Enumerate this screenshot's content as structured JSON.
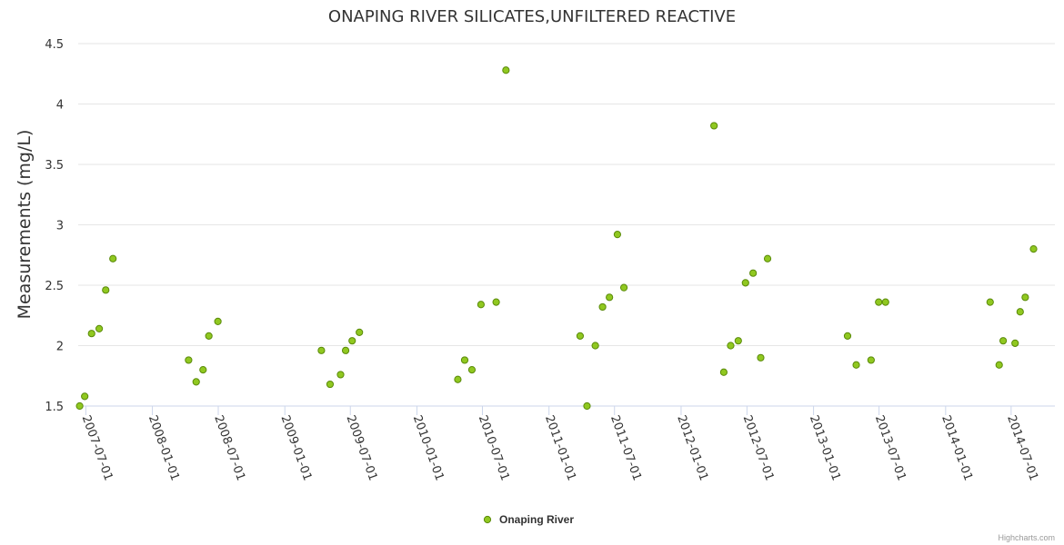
{
  "credits": "Highcharts.com",
  "chart_data": {
    "type": "scatter",
    "title": "ONAPING RIVER SILICATES,UNFILTERED REACTIVE",
    "xlabel": "",
    "ylabel": "Measurements (mg/L)",
    "ylim": [
      1.5,
      4.5
    ],
    "yticks": [
      1.5,
      2,
      2.5,
      3,
      3.5,
      4,
      4.5
    ],
    "ytick_labels": [
      "1.5",
      "2",
      "2.5",
      "3",
      "3.5",
      "4",
      "4.5"
    ],
    "xlim": [
      "2007-06-10",
      "2014-10-30"
    ],
    "xticks": [
      "2007-07-01",
      "2008-01-01",
      "2008-07-01",
      "2009-01-01",
      "2009-07-01",
      "2010-01-01",
      "2010-07-01",
      "2011-01-01",
      "2011-07-01",
      "2012-01-01",
      "2012-07-01",
      "2013-01-01",
      "2013-07-01",
      "2014-01-01",
      "2014-07-01"
    ],
    "grid": true,
    "legend_position": "bottom-center",
    "marker_color": "#90c820",
    "marker_stroke": "#5a8a0a",
    "series": [
      {
        "name": "Onaping River",
        "points": [
          [
            "2007-06-14",
            1.5
          ],
          [
            "2007-06-28",
            1.58
          ],
          [
            "2007-07-17",
            2.1
          ],
          [
            "2007-08-07",
            2.14
          ],
          [
            "2007-08-25",
            2.46
          ],
          [
            "2007-09-14",
            2.72
          ],
          [
            "2008-04-10",
            1.88
          ],
          [
            "2008-05-01",
            1.7
          ],
          [
            "2008-05-20",
            1.8
          ],
          [
            "2008-06-05",
            2.08
          ],
          [
            "2008-06-30",
            2.2
          ],
          [
            "2009-04-12",
            1.96
          ],
          [
            "2009-05-06",
            1.68
          ],
          [
            "2009-06-04",
            1.76
          ],
          [
            "2009-06-18",
            1.96
          ],
          [
            "2009-07-06",
            2.04
          ],
          [
            "2009-07-26",
            2.11
          ],
          [
            "2010-04-24",
            1.72
          ],
          [
            "2010-05-13",
            1.88
          ],
          [
            "2010-06-02",
            1.8
          ],
          [
            "2010-06-27",
            2.34
          ],
          [
            "2010-08-08",
            2.36
          ],
          [
            "2010-09-04",
            4.28
          ],
          [
            "2011-03-28",
            2.08
          ],
          [
            "2011-04-16",
            1.5
          ],
          [
            "2011-05-09",
            2.0
          ],
          [
            "2011-05-29",
            2.32
          ],
          [
            "2011-06-17",
            2.4
          ],
          [
            "2011-07-09",
            2.92
          ],
          [
            "2011-07-27",
            2.48
          ],
          [
            "2012-04-01",
            3.82
          ],
          [
            "2012-04-28",
            1.78
          ],
          [
            "2012-05-17",
            2.0
          ],
          [
            "2012-06-07",
            2.04
          ],
          [
            "2012-06-27",
            2.52
          ],
          [
            "2012-07-18",
            2.6
          ],
          [
            "2012-08-08",
            1.9
          ],
          [
            "2012-08-27",
            2.72
          ],
          [
            "2013-04-05",
            2.08
          ],
          [
            "2013-04-29",
            1.84
          ],
          [
            "2013-06-09",
            1.88
          ],
          [
            "2013-06-30",
            2.36
          ],
          [
            "2013-07-19",
            2.36
          ],
          [
            "2014-05-04",
            2.36
          ],
          [
            "2014-05-29",
            1.84
          ],
          [
            "2014-06-09",
            2.04
          ],
          [
            "2014-07-12",
            2.02
          ],
          [
            "2014-07-26",
            2.28
          ],
          [
            "2014-08-09",
            2.4
          ],
          [
            "2014-09-01",
            2.8
          ]
        ]
      }
    ]
  }
}
